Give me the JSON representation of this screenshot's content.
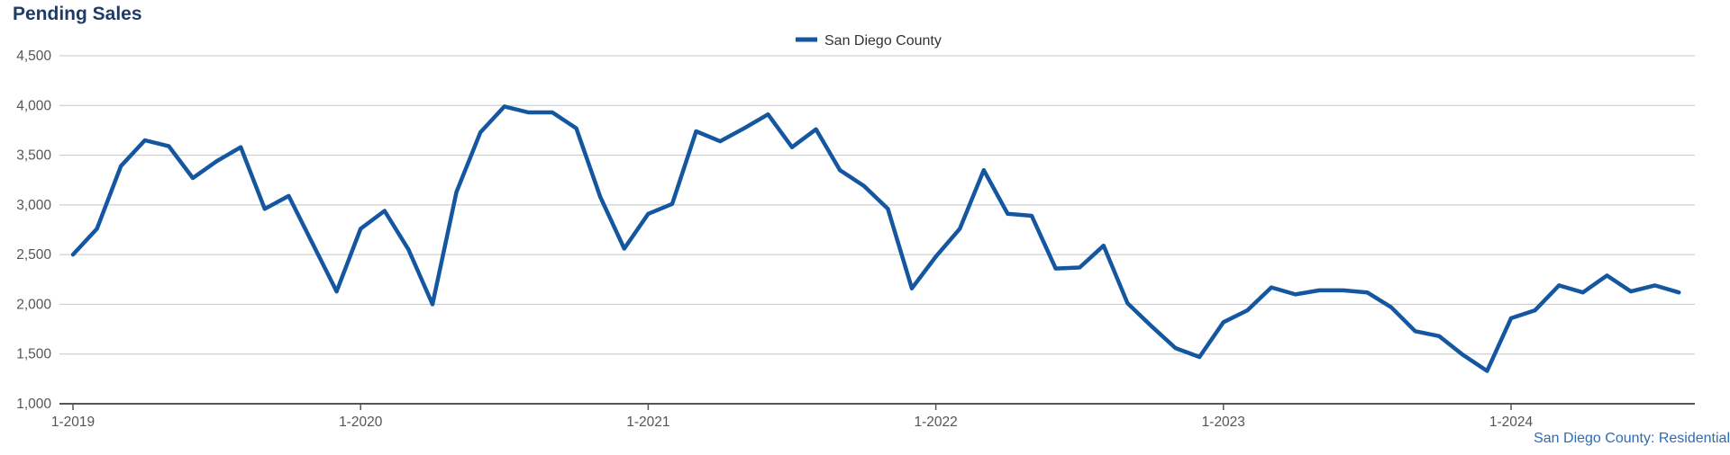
{
  "title": "Pending Sales",
  "footnote": "San Diego County: Residential",
  "colors": {
    "series": "#1457a0",
    "grid": "#c4c4c4",
    "axis": "#555555"
  },
  "chart_data": {
    "type": "line",
    "title": "Pending Sales",
    "xlabel": "",
    "ylabel": "",
    "ylim": [
      1000,
      4500
    ],
    "yticks": [
      1000,
      1500,
      2000,
      2500,
      3000,
      3500,
      4000,
      4500
    ],
    "ytick_labels": [
      "1,000",
      "1,500",
      "2,000",
      "2,500",
      "3,000",
      "3,500",
      "4,000",
      "4,500"
    ],
    "xtick_labels": [
      {
        "label": "1-2019",
        "index": 0
      },
      {
        "label": "1-2020",
        "index": 12
      },
      {
        "label": "1-2021",
        "index": 24
      },
      {
        "label": "1-2022",
        "index": 36
      },
      {
        "label": "1-2023",
        "index": 48
      },
      {
        "label": "1-2024",
        "index": 60
      }
    ],
    "legend": "top-center",
    "series": [
      {
        "name": "San Diego County",
        "start": "1-2019",
        "values": [
          2500,
          2760,
          3390,
          3650,
          3590,
          3270,
          3440,
          3580,
          2960,
          3090,
          2610,
          2130,
          2760,
          2940,
          2550,
          2000,
          3130,
          3730,
          3990,
          3930,
          3930,
          3770,
          3080,
          2560,
          2910,
          3010,
          3740,
          3640,
          3770,
          3910,
          3580,
          3760,
          3350,
          3190,
          2960,
          2160,
          2480,
          2760,
          3350,
          2910,
          2890,
          2360,
          2370,
          2590,
          2010,
          1780,
          1560,
          1470,
          1820,
          1940,
          2170,
          2100,
          2140,
          2140,
          2120,
          1970,
          1730,
          1680,
          1490,
          1330,
          1860,
          1940,
          2190,
          2120,
          2290,
          2130,
          2190,
          2120
        ]
      }
    ]
  }
}
